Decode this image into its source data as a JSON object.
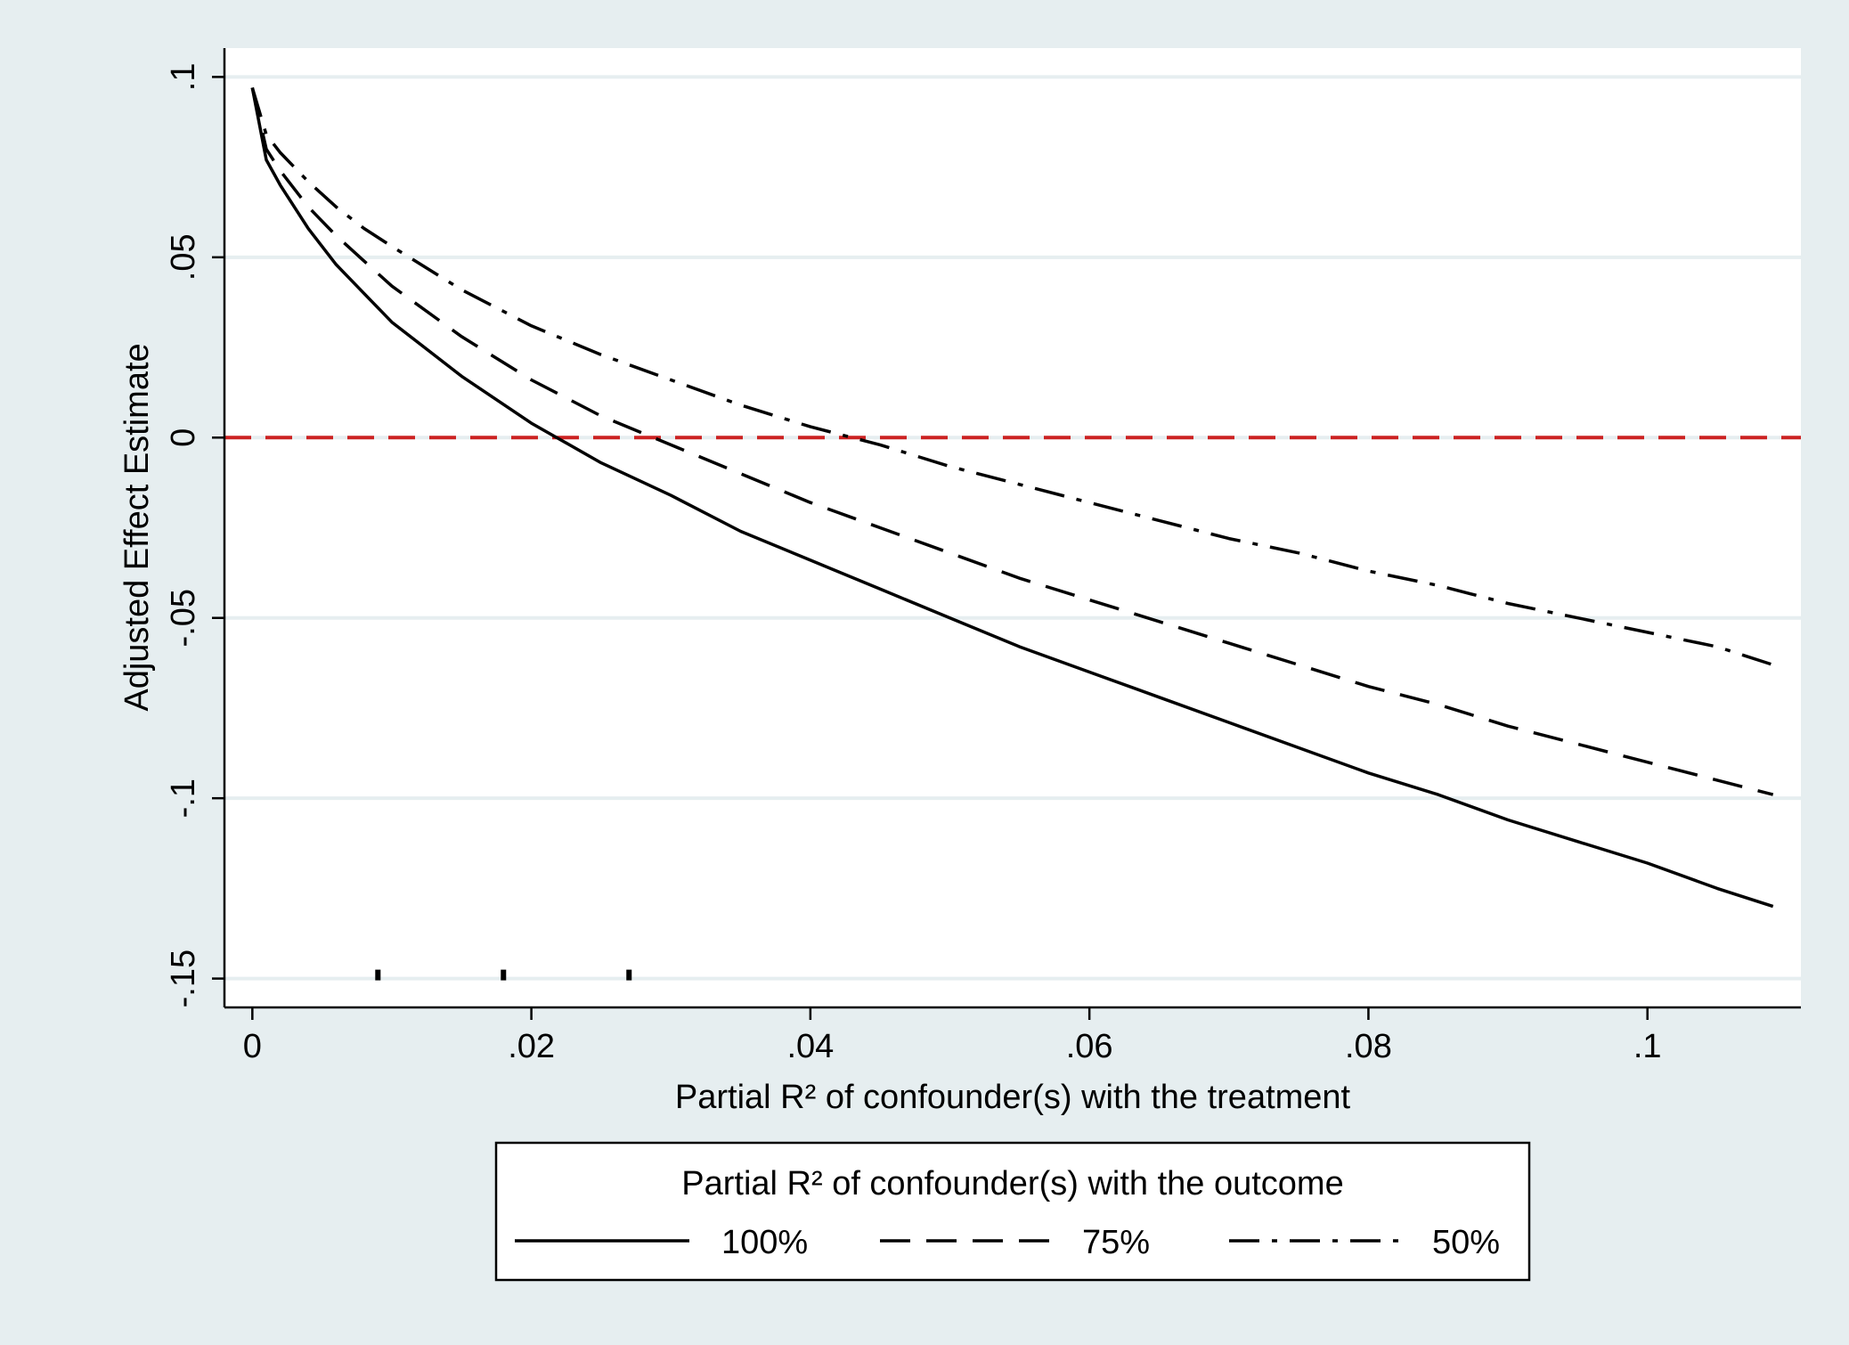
{
  "chart_data": {
    "type": "line",
    "xlabel": "Partial R² of confounder(s) with the treatment",
    "ylabel": "Adjusted Effect Estimate",
    "xlim": [
      -0.002,
      0.111
    ],
    "ylim": [
      -0.158,
      0.108
    ],
    "x_ticks": [
      0,
      0.02,
      0.04,
      0.06,
      0.08,
      0.1
    ],
    "x_tick_labels": [
      "0",
      ".02",
      ".04",
      ".06",
      ".08",
      ".1"
    ],
    "y_ticks": [
      0.1,
      0.05,
      0,
      -0.05,
      -0.1,
      -0.15
    ],
    "y_tick_labels": [
      ".1",
      ".05",
      "0",
      "-.05",
      "-.1",
      "-.15"
    ],
    "grid": "horizontal",
    "reference_line": {
      "y": 0,
      "color": "#cc2222",
      "style": "dashed"
    },
    "rug_marks": [
      0.009,
      0.018,
      0.027
    ],
    "legend": {
      "title": "Partial R² of confounder(s) with the outcome",
      "placement": "bottom"
    },
    "series": [
      {
        "name": "100%",
        "dash": "solid",
        "x": [
          0,
          0.001,
          0.002,
          0.004,
          0.006,
          0.008,
          0.01,
          0.015,
          0.02,
          0.025,
          0.03,
          0.035,
          0.04,
          0.045,
          0.05,
          0.055,
          0.06,
          0.065,
          0.07,
          0.075,
          0.08,
          0.085,
          0.09,
          0.095,
          0.1,
          0.105,
          0.109
        ],
        "y": [
          0.097,
          0.077,
          0.07,
          0.058,
          0.048,
          0.04,
          0.032,
          0.017,
          0.004,
          -0.007,
          -0.016,
          -0.026,
          -0.034,
          -0.042,
          -0.05,
          -0.058,
          -0.065,
          -0.072,
          -0.079,
          -0.086,
          -0.093,
          -0.099,
          -0.106,
          -0.112,
          -0.118,
          -0.125,
          -0.13
        ]
      },
      {
        "name": "75%",
        "dash": "dashed",
        "x": [
          0,
          0.001,
          0.002,
          0.004,
          0.006,
          0.008,
          0.01,
          0.015,
          0.02,
          0.025,
          0.03,
          0.035,
          0.04,
          0.045,
          0.05,
          0.055,
          0.06,
          0.065,
          0.07,
          0.075,
          0.08,
          0.085,
          0.09,
          0.095,
          0.1,
          0.105,
          0.109
        ],
        "y": [
          0.097,
          0.08,
          0.074,
          0.064,
          0.056,
          0.049,
          0.042,
          0.028,
          0.016,
          0.006,
          -0.002,
          -0.01,
          -0.018,
          -0.025,
          -0.032,
          -0.039,
          -0.045,
          -0.051,
          -0.057,
          -0.063,
          -0.069,
          -0.074,
          -0.08,
          -0.085,
          -0.09,
          -0.095,
          -0.099
        ]
      },
      {
        "name": "50%",
        "dash": "dashdot",
        "x": [
          0,
          0.001,
          0.002,
          0.004,
          0.006,
          0.008,
          0.01,
          0.015,
          0.02,
          0.025,
          0.03,
          0.035,
          0.04,
          0.045,
          0.05,
          0.055,
          0.06,
          0.065,
          0.07,
          0.075,
          0.08,
          0.085,
          0.09,
          0.095,
          0.1,
          0.105,
          0.109
        ],
        "y": [
          0.097,
          0.084,
          0.079,
          0.071,
          0.064,
          0.058,
          0.053,
          0.041,
          0.031,
          0.023,
          0.016,
          0.009,
          0.003,
          -0.002,
          -0.008,
          -0.013,
          -0.018,
          -0.023,
          -0.028,
          -0.032,
          -0.037,
          -0.041,
          -0.046,
          -0.05,
          -0.054,
          -0.058,
          -0.063
        ]
      }
    ]
  }
}
